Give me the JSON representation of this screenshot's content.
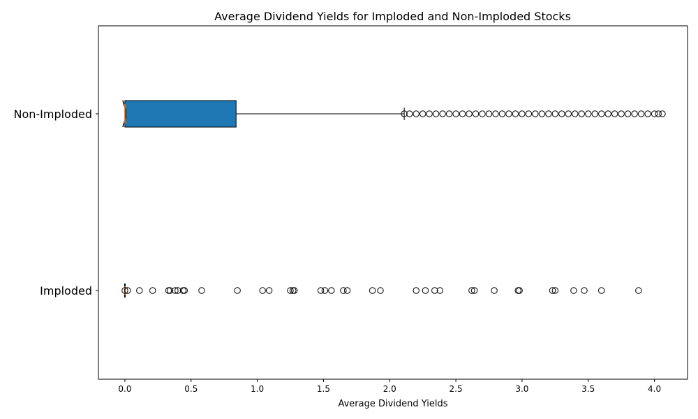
{
  "chart_data": {
    "type": "boxplot",
    "orientation": "horizontal",
    "notched": true,
    "title": "Average Dividend Yields for Imploded and Non-Imploded Stocks",
    "xlabel": "Average Dividend Yields",
    "ylabel": "",
    "xlim": [
      -0.2,
      4.25
    ],
    "xticks": [
      0.0,
      0.5,
      1.0,
      1.5,
      2.0,
      2.5,
      3.0,
      3.5,
      4.0
    ],
    "xtick_labels": [
      "0.0",
      "0.5",
      "1.0",
      "1.5",
      "2.0",
      "2.5",
      "3.0",
      "3.5",
      "4.0"
    ],
    "grid": false,
    "box_color": "#1f77b4",
    "median_color": "#ff7f0e",
    "categories": [
      "Non-Imploded",
      "Imploded"
    ],
    "series": [
      {
        "name": "Non-Imploded",
        "min": 0.0,
        "q1": 0.0,
        "median": 0.0,
        "q3": 0.84,
        "whisker_low": 0.0,
        "whisker_high": 2.11,
        "notch_low": -0.01,
        "notch_high": 0.01,
        "outliers": [
          2.11,
          2.15,
          2.2,
          2.25,
          2.3,
          2.35,
          2.4,
          2.45,
          2.5,
          2.55,
          2.6,
          2.65,
          2.7,
          2.75,
          2.8,
          2.85,
          2.9,
          2.95,
          3.0,
          3.05,
          3.1,
          3.15,
          3.2,
          3.25,
          3.3,
          3.35,
          3.4,
          3.45,
          3.5,
          3.55,
          3.6,
          3.65,
          3.7,
          3.75,
          3.8,
          3.85,
          3.9,
          3.95,
          4.0,
          4.03,
          4.06
        ]
      },
      {
        "name": "Imploded",
        "min": 0.0,
        "q1": 0.0,
        "median": 0.0,
        "q3": 0.0,
        "whisker_low": 0.0,
        "whisker_high": 0.0,
        "notch_low": 0.0,
        "notch_high": 0.0,
        "outliers": [
          0.0,
          0.02,
          0.11,
          0.21,
          0.33,
          0.34,
          0.38,
          0.4,
          0.44,
          0.45,
          0.58,
          0.85,
          1.04,
          1.09,
          1.25,
          1.27,
          1.28,
          1.48,
          1.51,
          1.56,
          1.65,
          1.68,
          1.87,
          1.93,
          2.2,
          2.27,
          2.34,
          2.38,
          2.62,
          2.64,
          2.79,
          2.97,
          2.98,
          3.23,
          3.25,
          3.39,
          3.47,
          3.6,
          3.88
        ]
      }
    ]
  }
}
